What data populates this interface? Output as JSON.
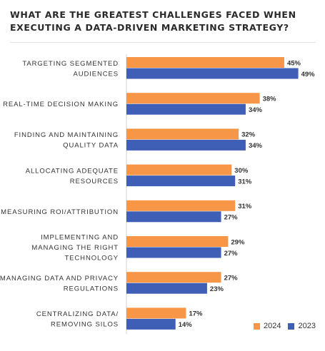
{
  "chart_data": {
    "type": "bar",
    "orientation": "horizontal",
    "title": "WHAT ARE THE GREATEST CHALLENGES FACED WHEN EXECUTING A DATA-DRIVEN MARKETING STRATEGY?",
    "categories": [
      [
        "TARGETING SEGMENTED",
        "AUDIENCES"
      ],
      [
        "REAL-TIME DECISION MAKING"
      ],
      [
        "FINDING AND MAINTAINING",
        "QUALITY DATA"
      ],
      [
        "ALLOCATING ADEQUATE",
        "RESOURCES"
      ],
      [
        "MEASURING ROI/ATTRIBUTION"
      ],
      [
        "IMPLEMENTING AND",
        "MANAGING THE RIGHT",
        "TECHNOLOGY"
      ],
      [
        "MANAGING DATA AND PRIVACY",
        "REGULATIONS"
      ],
      [
        "CENTRALIZING DATA/",
        "REMOVING SILOS"
      ]
    ],
    "series": [
      {
        "name": "2024",
        "color": "#F79646",
        "values": [
          45,
          38,
          32,
          30,
          31,
          29,
          27,
          17
        ]
      },
      {
        "name": "2023",
        "color": "#3F5FB7",
        "values": [
          49,
          34,
          34,
          31,
          27,
          27,
          23,
          14
        ]
      }
    ],
    "value_suffix": "%",
    "legend_position": "bottom-right",
    "grid": false
  }
}
